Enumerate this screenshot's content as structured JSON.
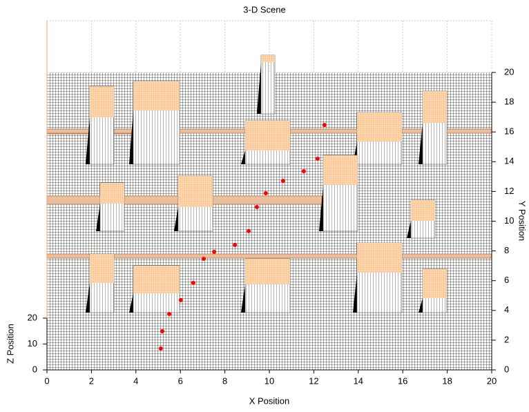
{
  "chart_data": {
    "type": "scatter",
    "title": "3-D Scene",
    "xlabel": "X Position",
    "ylabel": "Y Position",
    "zlabel": "Z Position",
    "xlim": [
      0,
      20
    ],
    "xticks": [
      0,
      2,
      4,
      6,
      8,
      10,
      12,
      14,
      16,
      18,
      20
    ],
    "ylim": [
      0,
      20
    ],
    "yticks": [
      0,
      2,
      4,
      6,
      8,
      10,
      12,
      14,
      16,
      18,
      20
    ],
    "zlim": [
      0,
      20
    ],
    "zticks": [
      0,
      10,
      20
    ],
    "x": [
      5.12,
      5.19,
      5.5,
      6.02,
      6.58,
      7.05,
      7.52,
      8.45,
      9.07,
      9.44,
      9.84,
      10.62,
      11.55,
      12.17,
      12.48
    ],
    "values": [
      1.44,
      2.6,
      3.76,
      4.69,
      5.85,
      7.47,
      7.94,
      8.4,
      9.33,
      10.95,
      11.88,
      12.71,
      13.36,
      14.2,
      16.47
    ],
    "color": "#ff0000",
    "grid": true
  }
}
